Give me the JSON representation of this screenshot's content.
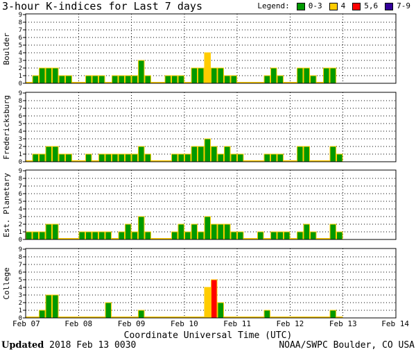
{
  "header": {
    "title": "3-hour K-indices for Last 7 days"
  },
  "legend": {
    "label": "Legend:",
    "items": [
      {
        "label": "0-3",
        "color": "#009900"
      },
      {
        "label": "4",
        "color": "#ffcc00"
      },
      {
        "label": "5,6",
        "color": "#ff0000"
      },
      {
        "label": "7-9",
        "color": "#330099"
      }
    ]
  },
  "footer": {
    "updated_label": "Updated",
    "updated_value": "2018 Feb 13 0030",
    "credit": "NOAA/SWPC Boulder, CO USA"
  },
  "chart_data": {
    "type": "bar",
    "xlabel": "Coordinate Universal Time (UTC)",
    "x_ticks": [
      "Feb 07",
      "Feb 08",
      "Feb 09",
      "Feb 10",
      "Feb 11",
      "Feb 12",
      "Feb 13",
      "Feb 14"
    ],
    "ylim": [
      0,
      9
    ],
    "y_ticks": [
      0,
      1,
      2,
      3,
      4,
      5,
      6,
      7,
      8,
      9
    ],
    "bins_per_day": 8,
    "grid": true,
    "panels": [
      {
        "station": "Boulder",
        "values": [
          0,
          1,
          2,
          2,
          2,
          1,
          1,
          0,
          0,
          1,
          1,
          1,
          0,
          1,
          1,
          1,
          1,
          3,
          1,
          0,
          0,
          1,
          1,
          1,
          0,
          2,
          2,
          4,
          2,
          2,
          1,
          1,
          0,
          0,
          0,
          0,
          1,
          2,
          1,
          0,
          0,
          2,
          2,
          1,
          0,
          2,
          2,
          null,
          null,
          null,
          null,
          null,
          null,
          null,
          null,
          null
        ]
      },
      {
        "station": "Fredericksburg",
        "values": [
          0,
          1,
          1,
          2,
          2,
          1,
          1,
          0,
          0,
          1,
          0,
          1,
          1,
          1,
          1,
          1,
          1,
          2,
          1,
          0,
          0,
          0,
          1,
          1,
          1,
          2,
          2,
          3,
          2,
          1,
          2,
          1,
          1,
          0,
          0,
          0,
          1,
          1,
          1,
          0,
          0,
          2,
          2,
          0,
          0,
          0,
          2,
          1,
          null,
          null,
          null,
          null,
          null,
          null,
          null,
          null
        ]
      },
      {
        "station": "Est. Planetary",
        "values": [
          1,
          1,
          1,
          2,
          2,
          0,
          0,
          0,
          1,
          1,
          1,
          1,
          1,
          0,
          1,
          2,
          1,
          3,
          1,
          0,
          0,
          0,
          1,
          2,
          1,
          2,
          1,
          3,
          2,
          2,
          2,
          1,
          1,
          0,
          0,
          1,
          0,
          1,
          1,
          1,
          0,
          1,
          2,
          1,
          0,
          0,
          2,
          1,
          null,
          null,
          null,
          null,
          null,
          null,
          null,
          null
        ]
      },
      {
        "station": "College",
        "values": [
          0,
          0,
          1,
          3,
          3,
          0,
          0,
          0,
          0,
          0,
          0,
          0,
          2,
          0,
          0,
          0,
          0,
          1,
          0,
          0,
          0,
          0,
          0,
          0,
          0,
          0,
          0,
          4,
          5,
          2,
          0,
          0,
          0,
          0,
          0,
          0,
          1,
          0,
          0,
          0,
          0,
          0,
          0,
          0,
          0,
          0,
          1,
          0,
          null,
          null,
          null,
          null,
          null,
          null,
          null,
          null
        ]
      }
    ]
  }
}
